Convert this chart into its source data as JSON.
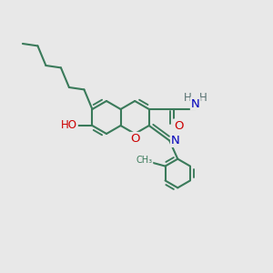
{
  "bg_color": "#e8e8e8",
  "bond_color": "#3a7a5a",
  "bond_width": 1.5,
  "dbo": 0.12,
  "atom_colors": {
    "O": "#cc0000",
    "N": "#0000bb",
    "C": "#3a7a5a",
    "H": "#557070"
  },
  "font_size": 8.5,
  "figsize": [
    3.0,
    3.0
  ],
  "dpi": 100
}
